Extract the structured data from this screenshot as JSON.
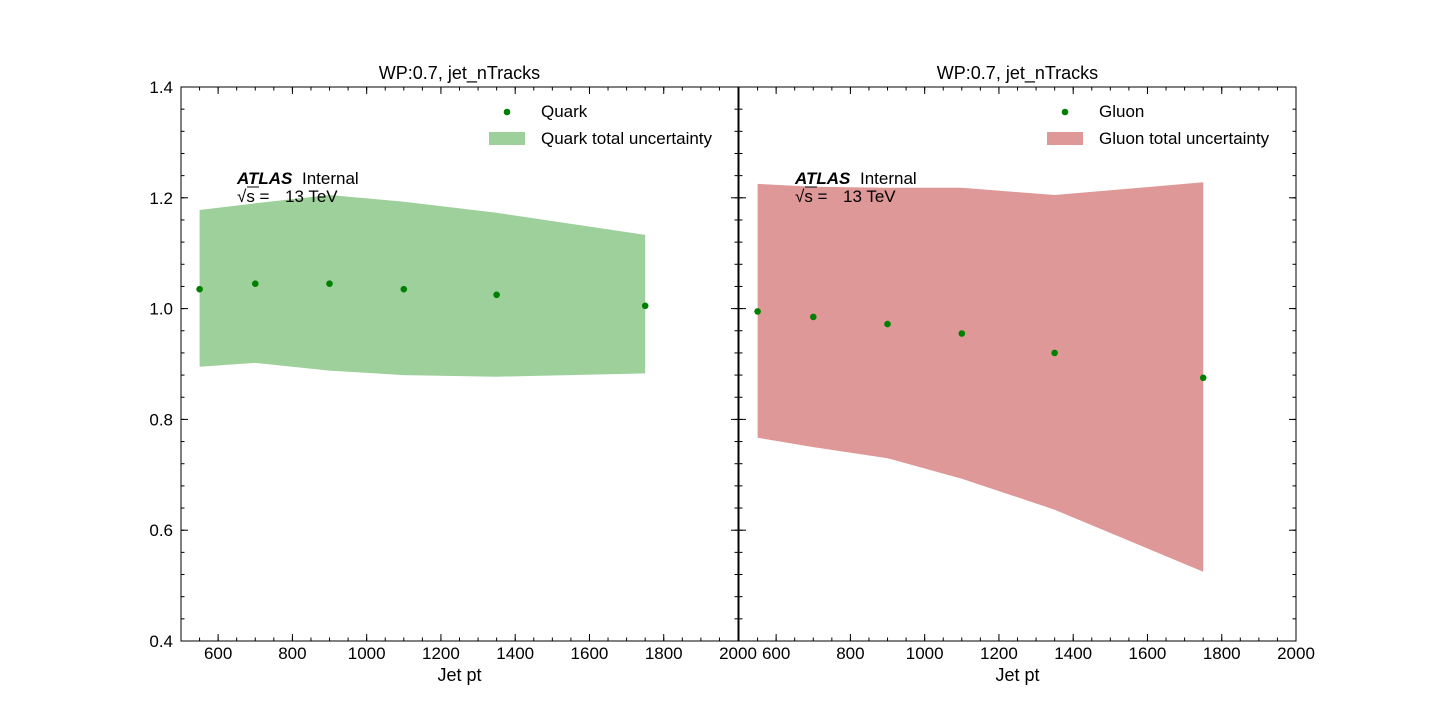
{
  "chart_data": [
    {
      "type": "scatter",
      "title": "WP:0.7, jet_nTracks",
      "xlabel": "Jet pt",
      "ylabel": "",
      "xlim": [
        500,
        2000
      ],
      "ylim": [
        0.4,
        1.4
      ],
      "xticks": [
        "600",
        "800",
        "1000",
        "1200",
        "1400",
        "1600",
        "1800",
        "2000"
      ],
      "yticks": [
        "0.4",
        "0.6",
        "0.8",
        "1.0",
        "1.2",
        "1.4"
      ],
      "grid": false,
      "legend_position": "top-right",
      "annotation": {
        "experiment": "ATLAS",
        "status": "Internal",
        "energy_prefix": "√s = ",
        "energy_value": "13 TeV"
      },
      "series": [
        {
          "name": "Quark",
          "kind": "points",
          "color": "#008000",
          "x": [
            550,
            700,
            900,
            1100,
            1350,
            1750
          ],
          "y": [
            1.035,
            1.045,
            1.045,
            1.035,
            1.025,
            1.005
          ]
        },
        {
          "name": "Quark total uncertainty",
          "kind": "band",
          "color": "#9dd09b",
          "x": [
            550,
            700,
            900,
            1100,
            1350,
            1750
          ],
          "y_low": [
            0.895,
            0.902,
            0.888,
            0.88,
            0.877,
            0.883
          ],
          "y_high": [
            1.178,
            1.19,
            1.205,
            1.193,
            1.173,
            1.133
          ]
        }
      ]
    },
    {
      "type": "scatter",
      "title": "WP:0.7, jet_nTracks",
      "xlabel": "Jet pt",
      "ylabel": "",
      "xlim": [
        500,
        2000
      ],
      "ylim": [
        0.4,
        1.4
      ],
      "xticks": [
        "600",
        "800",
        "1000",
        "1200",
        "1400",
        "1600",
        "1800",
        "2000"
      ],
      "yticks": [
        "0.4",
        "0.6",
        "0.8",
        "1.0",
        "1.2",
        "1.4"
      ],
      "grid": false,
      "legend_position": "top-right",
      "annotation": {
        "experiment": "ATLAS",
        "status": "Internal",
        "energy_prefix": "√s = ",
        "energy_value": "13 TeV"
      },
      "series": [
        {
          "name": "Gluon",
          "kind": "points",
          "color": "#008000",
          "x": [
            550,
            700,
            900,
            1100,
            1350,
            1750
          ],
          "y": [
            0.995,
            0.985,
            0.972,
            0.955,
            0.92,
            0.875
          ]
        },
        {
          "name": "Gluon total uncertainty",
          "kind": "band",
          "color": "#de9898",
          "x": [
            550,
            700,
            900,
            1100,
            1350,
            1750
          ],
          "y_low": [
            0.767,
            0.75,
            0.73,
            0.693,
            0.637,
            0.525
          ],
          "y_high": [
            1.225,
            1.22,
            1.218,
            1.218,
            1.205,
            1.228
          ]
        }
      ]
    }
  ]
}
